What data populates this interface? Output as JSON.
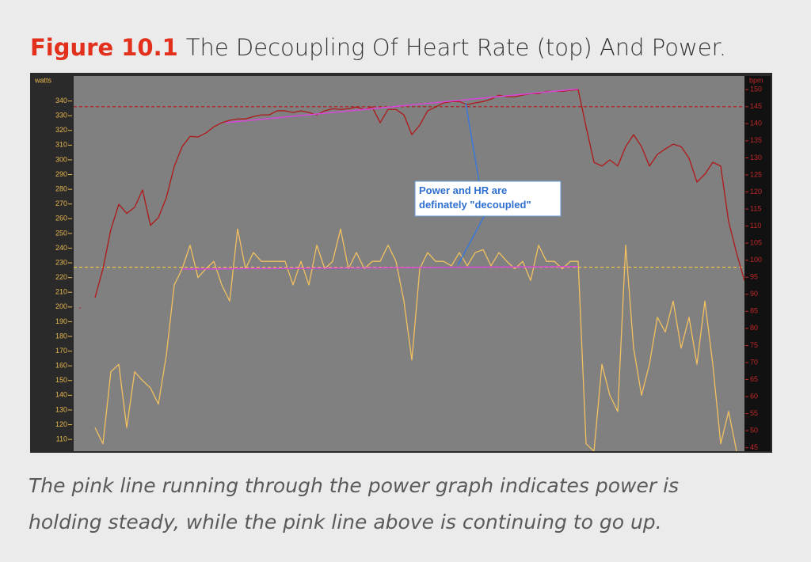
{
  "figure_label": "Figure 10.1",
  "title": "The Decoupling Of Heart Rate (top) And Power.",
  "caption": [
    "The pink line running through the power graph indicates power is",
    "holding steady, while the pink line above is continuing to go up."
  ],
  "chart_data": {
    "type": "line",
    "ylabel": "watts",
    "y2label": "bpm",
    "ylim": [
      102,
      357
    ],
    "yticks": [
      110,
      120,
      130,
      140,
      150,
      160,
      170,
      180,
      190,
      200,
      210,
      220,
      230,
      240,
      250,
      260,
      270,
      280,
      290,
      300,
      310,
      320,
      330,
      340
    ],
    "y2lim": [
      44,
      154
    ],
    "y2ticks": [
      45,
      50,
      55,
      60,
      65,
      70,
      75,
      80,
      85,
      90,
      95,
      100,
      105,
      110,
      115,
      120,
      125,
      130,
      135,
      140,
      145,
      150
    ],
    "series": [
      {
        "color": "#b01818",
        "axis": "y2",
        "values": [
          86,
          null,
          89,
          97.5,
          109,
          116.4,
          113.7,
          115.5,
          120.6,
          110.2,
          112.5,
          118.3,
          127.5,
          133.3,
          136.3,
          136.1,
          137.3,
          139.1,
          140.3,
          141,
          141.4,
          141.4,
          142.1,
          142.6,
          142.6,
          143.8,
          143.8,
          143.3,
          143.8,
          143.3,
          142.6,
          143.8,
          144.4,
          144.2,
          144.4,
          144.9,
          144.2,
          144.9,
          140.3,
          144.2,
          144.2,
          142.6,
          136.8,
          139.6,
          143.8,
          144.9,
          146.1,
          146.5,
          146.5,
          145.6,
          146.1,
          146.5,
          147.2,
          148.4,
          147.9,
          147.9,
          148.4,
          148.8,
          148.8,
          149.5,
          149.5,
          149.5,
          149.8,
          150,
          139.1,
          128.7,
          127.6,
          129.4,
          127.6,
          133.3,
          136.8,
          133.3,
          127.6,
          131,
          132.6,
          134,
          133.3,
          129.9,
          122.9,
          125.2,
          128.7,
          127.6,
          111.3,
          102.1,
          94
        ]
      },
      {
        "color": "#f2c060",
        "axis": "y",
        "values": [
          null,
          null,
          118,
          107,
          156,
          161,
          118,
          156,
          150,
          145,
          134,
          167,
          215,
          226,
          242,
          220,
          226,
          231,
          215,
          204,
          253,
          226,
          237,
          231,
          231,
          231,
          231,
          215,
          231,
          215,
          242,
          226,
          231,
          253,
          226,
          237,
          226,
          231,
          231,
          242,
          231,
          204,
          164,
          226,
          237,
          231,
          231,
          228,
          237,
          228,
          237,
          239,
          228,
          237,
          231,
          226,
          231,
          218,
          242,
          231,
          231,
          226,
          231,
          231,
          107,
          102,
          161,
          140,
          129,
          242,
          172,
          140,
          161,
          193,
          183,
          204,
          172,
          193,
          161,
          204,
          161,
          107,
          129,
          102,
          null
        ]
      }
    ],
    "reference_lines": [
      {
        "axis": "y2",
        "value": 145,
        "color": "#b02020"
      },
      {
        "axis": "y",
        "value": 227,
        "color": "#f0c050"
      }
    ],
    "trend_lines": [
      {
        "axis": "y2",
        "x": [
          18.5,
          63
        ],
        "values": [
          140.3,
          150.2
        ],
        "color": "#d848d8"
      },
      {
        "axis": "y",
        "x": [
          13,
          63
        ],
        "values": [
          225.8,
          227.5
        ],
        "color": "#d848d8"
      }
    ],
    "annotation": {
      "lines": [
        "Power and HR are",
        "definately \"decoupled\""
      ]
    }
  }
}
